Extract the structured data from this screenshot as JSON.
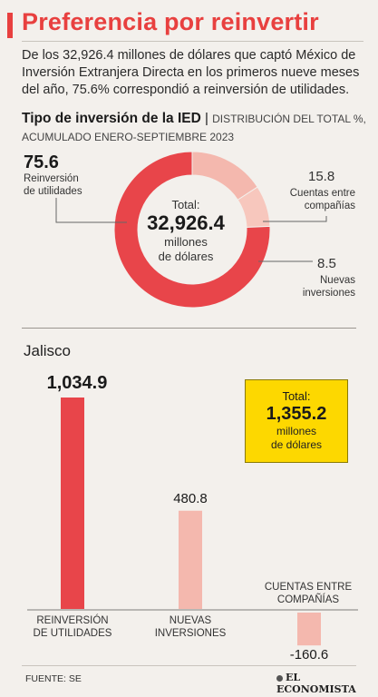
{
  "header": {
    "title": "Preferencia por reinvertir",
    "intro": "De los 32,926.4 millones de dólares que captó México de Inversión Extranjera Directa en los primeros nueve meses del año, 75.6% correspondió a reinversión de utilidades."
  },
  "donut_section": {
    "title": "Tipo de inversión de la IED",
    "separator": "|",
    "subtitle": "Distribución del total %, acumulado enero-septiembre 2023",
    "center": {
      "label": "Total:",
      "value": "32,926.4",
      "unit_line1": "millones",
      "unit_line2": "de dólares"
    },
    "items": [
      {
        "value": "75.6",
        "label_line1": "Reinversión",
        "label_line2": "de utilidades",
        "color": "#e8454a"
      },
      {
        "value": "15.8",
        "label_line1": "Cuentas entre",
        "label_line2": "compañías",
        "color": "#f4b8ae"
      },
      {
        "value": "8.5",
        "label_line1": "Nuevas",
        "label_line2": "inversiones",
        "color": "#f7c7bd"
      }
    ]
  },
  "jalisco_section": {
    "title": "Jalisco",
    "total_box": {
      "label": "Total:",
      "value": "1,355.2",
      "unit_line1": "millones",
      "unit_line2": "de dólares",
      "color": "#fdd800"
    }
  },
  "chart_data": [
    {
      "type": "pie",
      "title": "Tipo de inversión de la IED",
      "subtitle": "Distribución del total %, acumulado enero-septiembre 2023",
      "categories": [
        "Reinversión de utilidades",
        "Cuentas entre compañías",
        "Nuevas inversiones"
      ],
      "values": [
        75.6,
        15.8,
        8.5
      ],
      "colors": [
        "#e8454a",
        "#f4b8ae",
        "#f7c7bd"
      ],
      "donut": true
    },
    {
      "type": "bar",
      "title": "Jalisco",
      "categories": [
        {
          "line1": "Reinversión",
          "line2": "de utilidades"
        },
        {
          "line1": "Nuevas",
          "line2": "inversiones"
        },
        {
          "line1": "Cuentas entre",
          "line2": "compañías"
        }
      ],
      "values": [
        1034.9,
        480.8,
        -160.6
      ],
      "value_labels": [
        "1,034.9",
        "480.8",
        "-160.6"
      ],
      "colors": [
        "#e8454a",
        "#f4b8ae",
        "#f4b8ae"
      ],
      "grid": false
    }
  ],
  "footer": {
    "source": "FUENTE: SE",
    "brand": "EL ECONOMISTA"
  }
}
